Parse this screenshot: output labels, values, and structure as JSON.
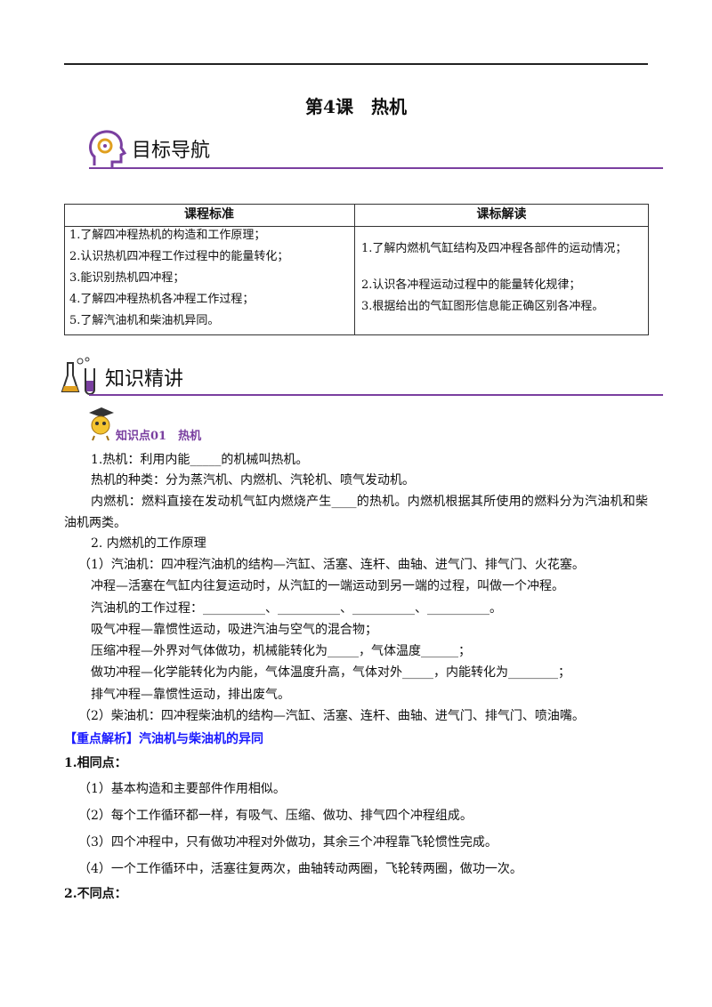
{
  "header": {
    "title": "第4课　热机"
  },
  "section1": {
    "heading": "目标导航"
  },
  "table": {
    "headers": [
      "课程标准",
      "课标解读"
    ],
    "left": [
      "1.了解四冲程热机的构造和工作原理；",
      "2.认识热机四冲程工作过程中的能量转化；",
      "3.能识别热机四冲程；",
      "4.了解四冲程热机各冲程工作过程；",
      "5.了解汽油机和柴油机异同。"
    ],
    "right": [
      "1.了解内燃机气缸结构及四冲程各部件的运动情况；",
      "2.认识各冲程运动过程中的能量转化规律；",
      "3.根据给出的气缸图形信息能正确区别各冲程。"
    ]
  },
  "section2": {
    "heading": "知识精讲"
  },
  "knowledge_point": {
    "title": "知识点01　热机"
  },
  "paragraphs": [
    "1.热机：利用内能_____的机械叫热机。",
    "热机的种类：分为蒸汽机、内燃机、汽轮机、喷气发动机。",
    "内燃机：燃料直接在发动机气缸内燃烧产生____的热机。内燃机根据其所使用的燃料分为汽油机和柴油机两类。",
    "2.  内燃机的工作原理",
    "（1）汽油机：四冲程汽油机的结构—汽缸、活塞、连杆、曲轴、进气门、排气门、火花塞。",
    "冲程—活塞在气缸内往复运动时，从汽缸的一端运动到另一端的过程，叫做一个冲程。",
    "汽油机的工作过程：__________、__________、__________、__________。",
    "吸气冲程—靠惯性运动，吸进汽油与空气的混合物；",
    "压缩冲程—外界对气体做功，机械能转化为_____，气体温度______；",
    "做功冲程—化学能转化为内能，气体温度升高，气体对外_____，内能转化为________；",
    "排气冲程—靠惯性运动，排出废气。",
    "（2）柴油机：四冲程柴油机的结构—汽缸、活塞、连杆、曲轴、进气门、排气门、喷油嘴。"
  ],
  "key_analysis": {
    "title": "【重点解析】汽油机与柴油机的异同",
    "similarities_heading": "1.相同点：",
    "similarities": [
      "（1）基本构造和主要部件作用相似。",
      "（2）每个工作循环都一样，有吸气、压缩、做功、排气四个冲程组成。",
      "（3）四个冲程中，只有做功冲程对外做功，其余三个冲程靠飞轮惯性完成。",
      "（4）一个工作循环中，活塞往复两次，曲轴转动两圈，飞轮转两圈，做功一次。"
    ],
    "differences_heading": "2.不同点："
  }
}
